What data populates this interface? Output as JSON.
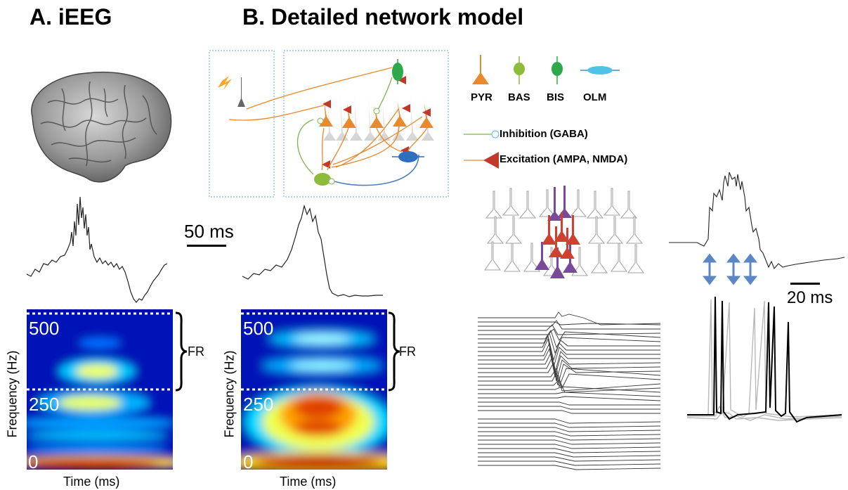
{
  "panel_a": {
    "title": "A. iEEG",
    "spectrogram": {
      "ticks": [
        "500",
        "250",
        "0"
      ],
      "ylabel": "Frequency (Hz)",
      "xlabel": "Time (ms)",
      "band_label": "FR"
    }
  },
  "panel_b": {
    "title": "B. Detailed network model",
    "spectrogram": {
      "ticks": [
        "500",
        "250",
        "0"
      ],
      "ylabel": "Frequency (Hz)",
      "xlabel": "Time (ms)",
      "band_label": "FR"
    },
    "cell_types": [
      "PYR",
      "BAS",
      "BIS",
      "OLM"
    ],
    "synapse_legend": {
      "inhibition": "Inhibition (GABA)",
      "excitation": "Excitation (AMPA, NMDA)"
    }
  },
  "scalebars": {
    "left": "50 ms",
    "right": "20 ms"
  },
  "colors": {
    "pyr": "#e8892b",
    "bas": "#8dbb3a",
    "bis": "#2da84a",
    "olm": "#4ec3e6",
    "inhibition": "#7ab648",
    "excitation": "#c0392b",
    "arrows": "#5b87c5",
    "spec_low": "#00008f",
    "spec_high": "#c80000"
  }
}
